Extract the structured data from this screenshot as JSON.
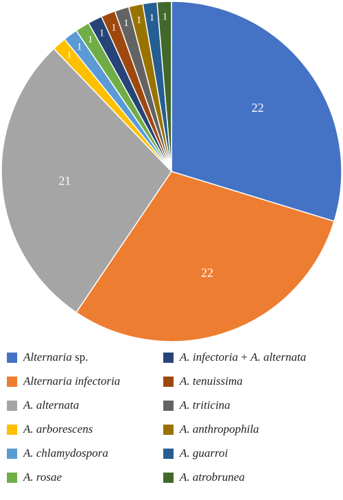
{
  "chart_data": {
    "type": "pie",
    "title": "",
    "slices": [
      {
        "label_parts": [
          {
            "t": "Alternaria",
            "i": true
          },
          {
            "t": " sp.",
            "i": false
          }
        ],
        "value": 22,
        "display": "22",
        "color": "#4472C4"
      },
      {
        "label_parts": [
          {
            "t": "Alternaria infectoria",
            "i": true
          }
        ],
        "value": 22,
        "display": "22",
        "color": "#ED7D31"
      },
      {
        "label_parts": [
          {
            "t": "A. alternata",
            "i": true
          }
        ],
        "value": 21,
        "display": "21",
        "color": "#A5A5A5"
      },
      {
        "label_parts": [
          {
            "t": "A. arborescens",
            "i": true
          }
        ],
        "value": 1,
        "display": "1",
        "color": "#FFC000"
      },
      {
        "label_parts": [
          {
            "t": "A. chlamydospora",
            "i": true
          }
        ],
        "value": 1,
        "display": "1",
        "color": "#5B9BD5"
      },
      {
        "label_parts": [
          {
            "t": "A. rosae",
            "i": true
          }
        ],
        "value": 1,
        "display": "1",
        "color": "#70AD47"
      },
      {
        "label_parts": [
          {
            "t": "A. infectoria",
            "i": true
          },
          {
            "t": " + ",
            "i": false
          },
          {
            "t": "A. alternata",
            "i": true
          }
        ],
        "value": 1,
        "display": "1",
        "color": "#264478"
      },
      {
        "label_parts": [
          {
            "t": "A. tenuissima",
            "i": true
          }
        ],
        "value": 1,
        "display": "1",
        "color": "#9E480E"
      },
      {
        "label_parts": [
          {
            "t": "A. triticina",
            "i": true
          }
        ],
        "value": 1,
        "display": "1",
        "color": "#636363"
      },
      {
        "label_parts": [
          {
            "t": "A. anthropophila",
            "i": true
          }
        ],
        "value": 1,
        "display": "1",
        "color": "#997300"
      },
      {
        "label_parts": [
          {
            "t": "A. guarroi",
            "i": true
          }
        ],
        "value": 1,
        "display": "1",
        "color": "#255E91"
      },
      {
        "label_parts": [
          {
            "t": "A. atrobrunea",
            "i": true
          }
        ],
        "value": 1,
        "display": "1",
        "color": "#43682B"
      }
    ],
    "legend_position": "bottom",
    "legend_columns": 2
  }
}
